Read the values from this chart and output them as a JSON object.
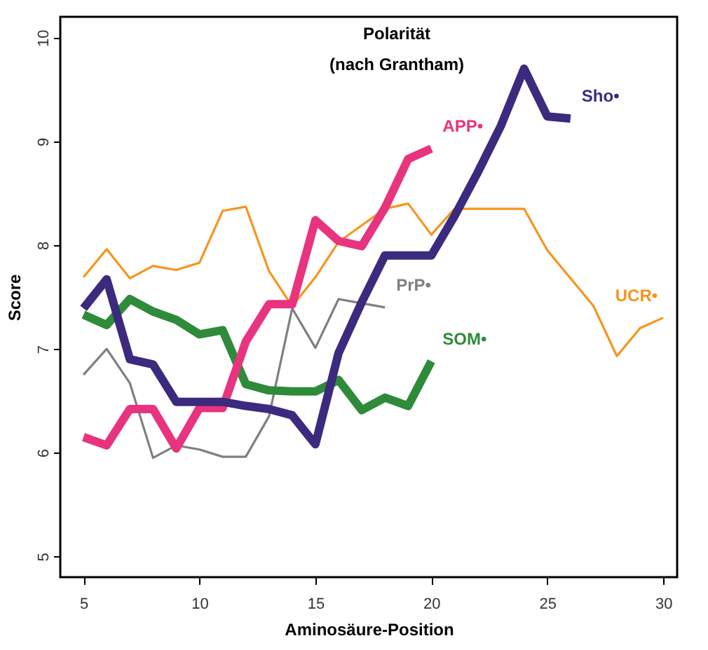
{
  "chart_data": {
    "type": "line",
    "title": [
      "Polarität",
      "(nach Grantham)"
    ],
    "xlabel": "Aminosäure-Position",
    "ylabel": "Score",
    "xlim": [
      4.0,
      30.6
    ],
    "xticks": [
      5,
      10,
      15,
      20,
      25,
      30
    ],
    "ylim": [
      4.8,
      10.2
    ],
    "yticks": [
      5,
      6,
      7,
      8,
      9,
      10
    ],
    "grid": false,
    "marker": "none",
    "line_style": "solid",
    "series": [
      {
        "name": "UCR•",
        "color": "#f7941d",
        "x": [
          5,
          6,
          7,
          8,
          9,
          10,
          11,
          12,
          13,
          14,
          15,
          16,
          17,
          18,
          19,
          20,
          21,
          22,
          23,
          24,
          25,
          26,
          27,
          28,
          29,
          30
        ],
        "values": [
          7.69,
          7.96,
          7.68,
          7.8,
          7.76,
          7.83,
          8.33,
          8.37,
          7.75,
          7.41,
          7.69,
          8.03,
          8.19,
          8.35,
          8.4,
          8.1,
          8.35,
          8.35,
          8.35,
          8.35,
          7.95,
          7.68,
          7.41,
          6.93,
          7.2,
          7.3
        ]
      },
      {
        "name": "PrP•",
        "color": "#7f7f7f",
        "x": [
          5,
          6,
          7,
          8,
          9,
          10,
          11,
          12,
          13,
          14,
          15,
          16,
          17,
          18
        ],
        "values": [
          6.75,
          7.0,
          6.67,
          5.95,
          6.07,
          6.03,
          5.96,
          5.96,
          6.35,
          7.39,
          7.01,
          7.48,
          7.44,
          7.4
        ]
      },
      {
        "name": "SOM•",
        "color": "#2e8b3a",
        "x": [
          5,
          6,
          7,
          8,
          9,
          10,
          11,
          12,
          13,
          14,
          15,
          16,
          17,
          18,
          19,
          20
        ],
        "values": [
          7.33,
          7.23,
          7.48,
          7.36,
          7.28,
          7.14,
          7.18,
          6.66,
          6.6,
          6.59,
          6.59,
          6.7,
          6.41,
          6.53,
          6.45,
          6.88
        ]
      },
      {
        "name": "APP•",
        "color": "#e8347f",
        "x": [
          5,
          6,
          7,
          8,
          9,
          10,
          11,
          12,
          13,
          14,
          15,
          16,
          17,
          18,
          19,
          20
        ],
        "values": [
          6.15,
          6.07,
          6.42,
          6.42,
          6.04,
          6.43,
          6.43,
          7.07,
          7.43,
          7.43,
          8.24,
          8.04,
          7.99,
          8.36,
          8.83,
          8.93
        ]
      },
      {
        "name": "Sho•",
        "color": "#3b2a7e",
        "x": [
          5,
          6,
          7,
          8,
          9,
          10,
          11,
          12,
          13,
          14,
          15,
          16,
          17,
          18,
          19,
          20,
          21,
          22,
          23,
          24,
          25,
          26
        ],
        "values": [
          7.39,
          7.67,
          6.9,
          6.85,
          6.49,
          6.49,
          6.49,
          6.45,
          6.42,
          6.36,
          6.08,
          6.96,
          7.45,
          7.9,
          7.9,
          7.9,
          8.28,
          8.7,
          9.15,
          9.7,
          9.24,
          9.22
        ]
      }
    ]
  }
}
